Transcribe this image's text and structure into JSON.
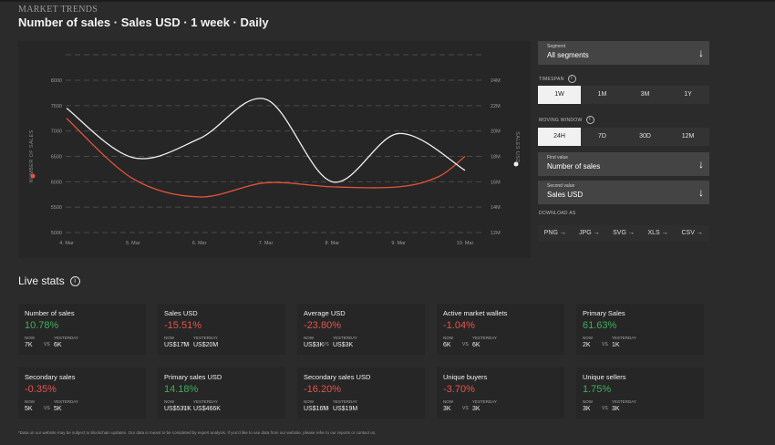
{
  "app": {
    "title": "MARKET TRENDS"
  },
  "page": {
    "title": "Number of sales · Sales USD · 1 week · Daily"
  },
  "chart_data": {
    "type": "line",
    "x": [
      "4. Mar",
      "5. Mar",
      "6. Mar",
      "7. Mar",
      "8. Mar",
      "9. Mar",
      "10. Mar"
    ],
    "ylabel": "NUMBER OF SALES",
    "y2label": "SALES USD",
    "yticks": [
      "5000",
      "5500",
      "6000",
      "6500",
      "7000",
      "7500",
      "8000"
    ],
    "y2ticks": [
      "12M",
      "14M",
      "16M",
      "18M",
      "20M",
      "22M",
      "24M"
    ],
    "ylim": [
      5000,
      8000
    ],
    "y2lim": [
      12,
      24
    ],
    "grid": true,
    "series": [
      {
        "name": "NUMBER OF SALES",
        "axis": "left",
        "color": "#e5533b",
        "x": [
          0,
          1,
          2,
          3,
          4,
          5,
          5.6,
          6
        ],
        "values": [
          7250,
          6060,
          5700,
          5980,
          5900,
          5900,
          6100,
          6500
        ]
      },
      {
        "name": "SALES USD",
        "axis": "right",
        "color": "#f0f0f0",
        "x": [
          0,
          1,
          2,
          3,
          4,
          5,
          6
        ],
        "values": [
          21.8,
          17.9,
          19.4,
          22.5,
          16.0,
          19.8,
          16.9
        ]
      }
    ]
  },
  "controls": {
    "segment": {
      "label": "Segment",
      "value": "All segments"
    },
    "timespan": {
      "label": "TIMESPAN",
      "options": [
        "1W",
        "1M",
        "3M",
        "1Y"
      ],
      "active": "1W"
    },
    "moving_window": {
      "label": "MOVING WINDOW",
      "options": [
        "24H",
        "7D",
        "30D",
        "12M"
      ],
      "active": "24H"
    },
    "first_value": {
      "label": "First value",
      "value": "Number of sales"
    },
    "second_value": {
      "label": "Second value",
      "value": "Sales USD"
    },
    "download": {
      "label": "DOWNLOAD AS",
      "options": [
        "PNG →",
        "JPG →",
        "SVG →",
        "XLS →",
        "CSV →"
      ]
    },
    "icons": {
      "arrow": "down-arrow-icon",
      "info": "info-icon"
    }
  },
  "live_stats": {
    "title": "Live stats",
    "now_label": "NOW",
    "vs_label": "VS",
    "yesterday_label": "YESTERDAY",
    "cards": [
      {
        "title": "Number of sales",
        "pct": "10.78%",
        "trend": "pos",
        "now": "7K",
        "yesterday": "6K"
      },
      {
        "title": "Sales USD",
        "pct": "-15.51%",
        "trend": "neg",
        "now": "US$17M",
        "yesterday": "US$20M"
      },
      {
        "title": "Average USD",
        "pct": "-23.80%",
        "trend": "neg",
        "now": "US$3K",
        "yesterday": "US$3K"
      },
      {
        "title": "Active market wallets",
        "pct": "-1.04%",
        "trend": "neg",
        "now": "6K",
        "yesterday": "6K"
      },
      {
        "title": "Primary Sales",
        "pct": "61.63%",
        "trend": "pos",
        "now": "2K",
        "yesterday": "1K"
      },
      {
        "title": "Secondary sales",
        "pct": "-0.35%",
        "trend": "neg",
        "now": "5K",
        "yesterday": "5K"
      },
      {
        "title": "Primary sales USD",
        "pct": "14.18%",
        "trend": "pos",
        "now": "US$531K",
        "yesterday": "US$466K"
      },
      {
        "title": "Secondary sales USD",
        "pct": "-16.20%",
        "trend": "neg",
        "now": "US$16M",
        "yesterday": "US$19M"
      },
      {
        "title": "Unique buyers",
        "pct": "-3.70%",
        "trend": "neg",
        "now": "3K",
        "yesterday": "3K"
      },
      {
        "title": "Unique sellers",
        "pct": "1.75%",
        "trend": "pos",
        "now": "3K",
        "yesterday": "3K"
      }
    ]
  },
  "footnote": "*Data on our website may be subject to blockchain updates. Our data is meant to be completed by expert analysis. If you'd like to use data from our website, please refer to our reports or contact us."
}
